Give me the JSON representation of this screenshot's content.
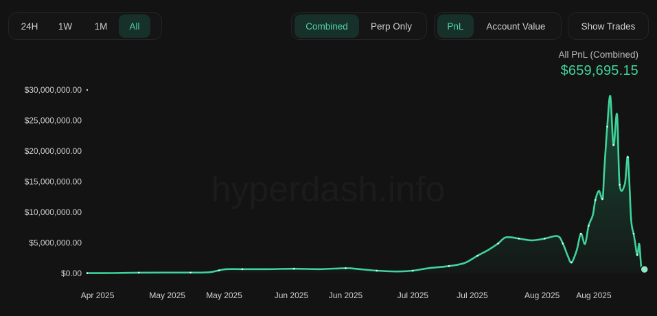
{
  "controls": {
    "range": [
      {
        "label": "24H",
        "active": false
      },
      {
        "label": "1W",
        "active": false
      },
      {
        "label": "1M",
        "active": false
      },
      {
        "label": "All",
        "active": true
      }
    ],
    "mode": [
      {
        "label": "Combined",
        "active": true
      },
      {
        "label": "Perp Only",
        "active": false
      }
    ],
    "metric": [
      {
        "label": "PnL",
        "active": true
      },
      {
        "label": "Account Value",
        "active": false
      }
    ],
    "show_trades_label": "Show Trades"
  },
  "summary": {
    "label": "All PnL (Combined)",
    "value": "$659,695.15"
  },
  "colors": {
    "accent": "#43d39d",
    "background": "#131313"
  },
  "watermark": "hyperdash.info",
  "chart_data": {
    "type": "area",
    "title": "",
    "xlabel": "",
    "ylabel": "",
    "ylim": [
      0,
      30000000
    ],
    "grid": false,
    "y_ticks": [
      {
        "value": 30000000,
        "label": "$30,000,000.00"
      },
      {
        "value": 25000000,
        "label": "$25,000,000.00"
      },
      {
        "value": 20000000,
        "label": "$20,000,000.00"
      },
      {
        "value": 15000000,
        "label": "$15,000,000.00"
      },
      {
        "value": 10000000,
        "label": "$10,000,000.00"
      },
      {
        "value": 5000000,
        "label": "$5,000,000.00"
      },
      {
        "value": 0,
        "label": "$0.00"
      }
    ],
    "x_ticks": [
      {
        "t": 0.02,
        "label": "Apr 2025"
      },
      {
        "t": 0.155,
        "label": "May 2025"
      },
      {
        "t": 0.265,
        "label": "May 2025"
      },
      {
        "t": 0.395,
        "label": "Jun 2025"
      },
      {
        "t": 0.5,
        "label": "Jun 2025"
      },
      {
        "t": 0.63,
        "label": "Jul 2025"
      },
      {
        "t": 0.745,
        "label": "Jul 2025"
      },
      {
        "t": 0.88,
        "label": "Aug 2025"
      },
      {
        "t": 0.98,
        "label": "Aug 2025"
      }
    ],
    "series": [
      {
        "points": [
          [
            0.0,
            50000
          ],
          [
            0.05,
            60000
          ],
          [
            0.1,
            120000
          ],
          [
            0.15,
            130000
          ],
          [
            0.2,
            140000
          ],
          [
            0.235,
            180000
          ],
          [
            0.255,
            500000
          ],
          [
            0.27,
            700000
          ],
          [
            0.3,
            700000
          ],
          [
            0.35,
            700000
          ],
          [
            0.4,
            760000
          ],
          [
            0.45,
            700000
          ],
          [
            0.5,
            850000
          ],
          [
            0.52,
            750000
          ],
          [
            0.56,
            450000
          ],
          [
            0.6,
            320000
          ],
          [
            0.63,
            450000
          ],
          [
            0.66,
            850000
          ],
          [
            0.7,
            1200000
          ],
          [
            0.73,
            1700000
          ],
          [
            0.755,
            2900000
          ],
          [
            0.775,
            3800000
          ],
          [
            0.795,
            4900000
          ],
          [
            0.81,
            5900000
          ],
          [
            0.835,
            5700000
          ],
          [
            0.86,
            5400000
          ],
          [
            0.885,
            5700000
          ],
          [
            0.91,
            6100000
          ],
          [
            0.92,
            4900000
          ],
          [
            0.93,
            2800000
          ],
          [
            0.937,
            1800000
          ],
          [
            0.947,
            3800000
          ],
          [
            0.955,
            6500000
          ],
          [
            0.963,
            4800000
          ],
          [
            0.97,
            7800000
          ],
          [
            0.978,
            9500000
          ],
          [
            0.983,
            12000000
          ],
          [
            0.99,
            13500000
          ],
          [
            0.997,
            12200000
          ],
          [
            1.0,
            16500000
          ],
          [
            1.006,
            24000000
          ],
          [
            1.012,
            29000000
          ],
          [
            1.018,
            21000000
          ],
          [
            1.025,
            26000000
          ],
          [
            1.03,
            14500000
          ],
          [
            1.04,
            14600000
          ],
          [
            1.046,
            19000000
          ],
          [
            1.052,
            9000000
          ],
          [
            1.057,
            6500000
          ],
          [
            1.06,
            5000000
          ],
          [
            1.064,
            3000000
          ],
          [
            1.068,
            4800000
          ],
          [
            1.072,
            1000000
          ],
          [
            1.078,
            659695
          ]
        ]
      }
    ]
  }
}
